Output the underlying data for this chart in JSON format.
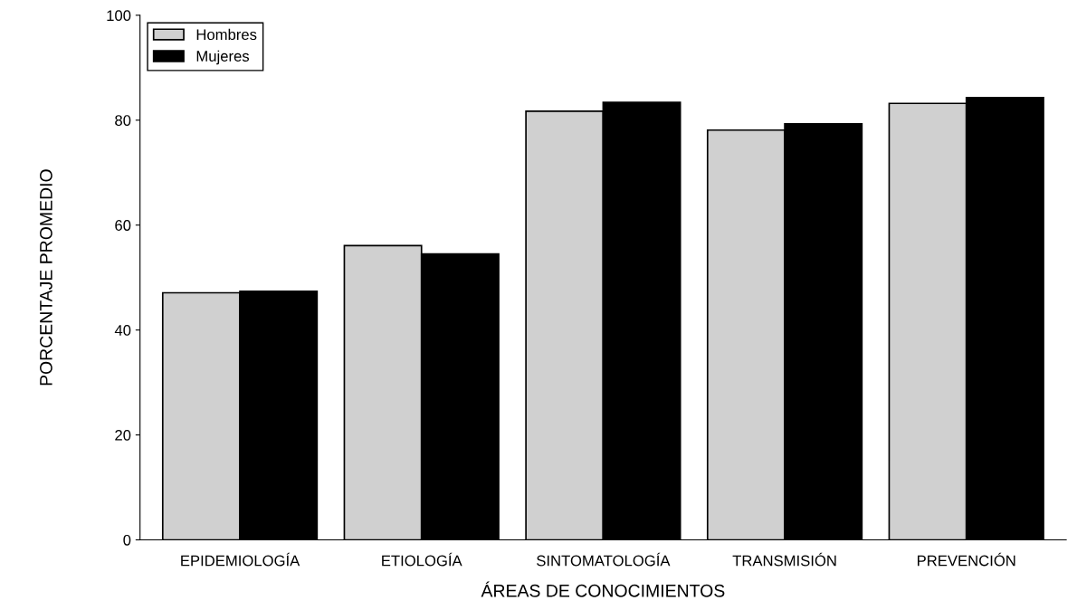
{
  "chart_data": {
    "type": "bar",
    "xlabel": "ÁREAS DE CONOCIMIENTOS",
    "ylabel": "PORCENTAJE PROMEDIO",
    "categories": [
      "EPIDEMIOLOGÍA",
      "ETIOLOGÍA",
      "SINTOMATOLOGÍA",
      "TRANSMISIÓN",
      "PREVENCIÓN"
    ],
    "series": [
      {
        "name": "Hombres",
        "color": "#d0d0d0",
        "values": [
          47.1,
          56.1,
          81.7,
          78.1,
          83.2
        ]
      },
      {
        "name": "Mujeres",
        "color": "#000000",
        "values": [
          47.4,
          54.5,
          83.4,
          79.3,
          84.3
        ]
      }
    ],
    "ylim": [
      0,
      100
    ],
    "yticks": [
      0,
      20,
      40,
      60,
      80,
      100
    ],
    "grid": false,
    "legend": "top left"
  }
}
